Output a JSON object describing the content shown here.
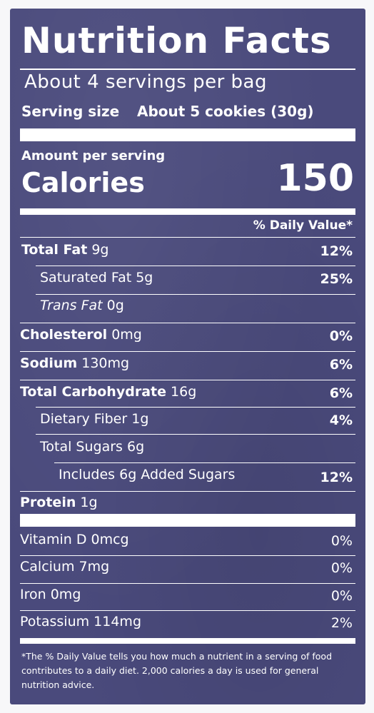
{
  "label": {
    "title": "Nutrition Facts",
    "servings_per_container": "About 4 servings per bag",
    "serving_size_label": "Serving size",
    "serving_size_value": "About 5 cookies (30g)",
    "amount_per_serving": "Amount per serving",
    "calories_label": "Calories",
    "calories_value": "150",
    "daily_value_header": "% Daily Value*"
  },
  "nutrients": [
    {
      "name": "Total Fat",
      "amount": "9g",
      "dv": "12%"
    },
    {
      "name": "Saturated Fat",
      "amount": "5g",
      "dv": "25%"
    },
    {
      "name": "Trans Fat",
      "amount": "0g",
      "dv": ""
    },
    {
      "name": "Cholesterol",
      "amount": "0mg",
      "dv": "0%"
    },
    {
      "name": "Sodium",
      "amount": "130mg",
      "dv": "6%"
    },
    {
      "name": "Total Carbohydrate",
      "amount": "16g",
      "dv": "6%"
    },
    {
      "name": "Dietary Fiber",
      "amount": "1g",
      "dv": "4%"
    },
    {
      "name": "Total Sugars",
      "amount": "6g",
      "dv": ""
    },
    {
      "name": "Includes 6g Added Sugars",
      "amount": "",
      "dv": "12%"
    },
    {
      "name": "Protein",
      "amount": "1g",
      "dv": ""
    }
  ],
  "vitamins": [
    {
      "name": "Vitamin D",
      "amount": "0mcg",
      "dv": "0%"
    },
    {
      "name": "Calcium",
      "amount": "7mg",
      "dv": "0%"
    },
    {
      "name": "Iron",
      "amount": "0mg",
      "dv": "0%"
    },
    {
      "name": "Potassium",
      "amount": "114mg",
      "dv": "2%"
    }
  ],
  "footnote": "*The % Daily Value tells you how much a nutrient in a serving of food contributes to a daily diet. 2,000 calories a day is used for general nutrition advice.",
  "colors": {
    "panel_background": "#4a4a7c",
    "text": "#ffffff",
    "page_background": "#f7f7f9"
  }
}
